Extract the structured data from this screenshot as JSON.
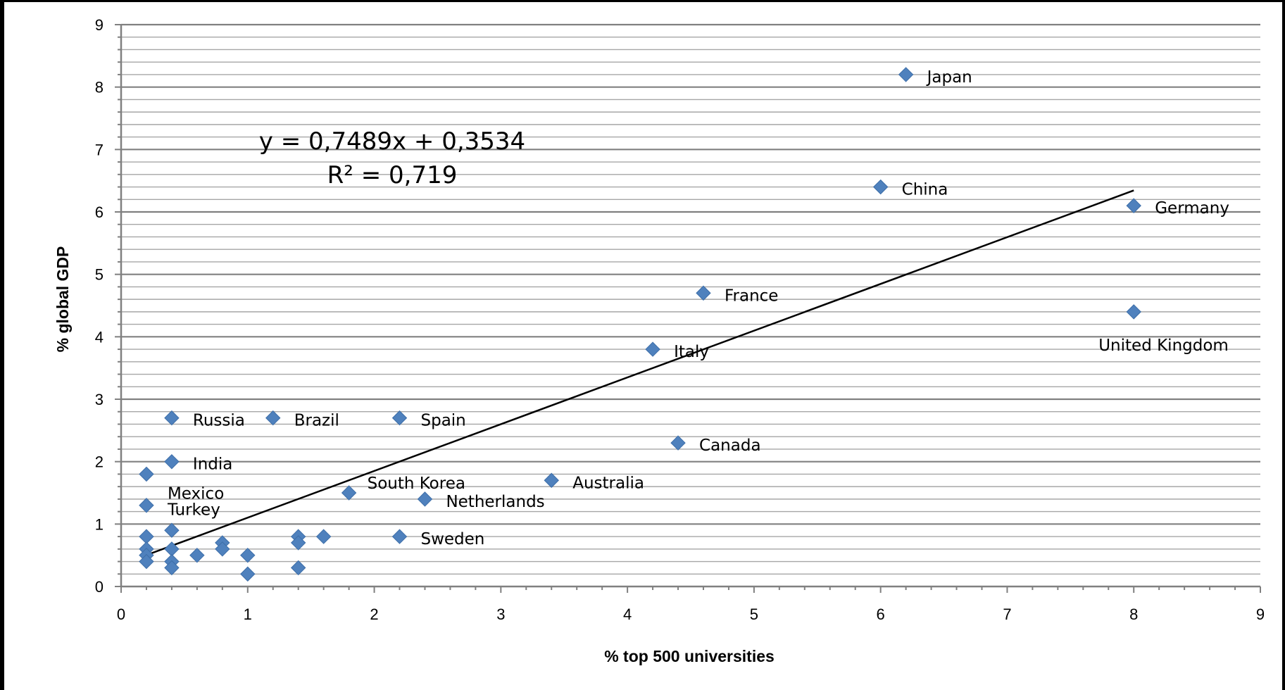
{
  "chart_data": {
    "type": "scatter",
    "title": "",
    "xlabel": "% top 500 universities",
    "ylabel": "% global GDP",
    "xlim": [
      0,
      9
    ],
    "ylim": [
      0,
      9
    ],
    "x_ticks": [
      "0",
      "1",
      "2",
      "3",
      "4",
      "5",
      "6",
      "7",
      "8",
      "9"
    ],
    "y_ticks": [
      "0",
      "1",
      "2",
      "3",
      "4",
      "5",
      "6",
      "7",
      "8",
      "9"
    ],
    "grid": "horizontal",
    "legend": "none",
    "marker": "diamond",
    "marker_color": "#4f81bd",
    "points": [
      {
        "x": 6.2,
        "y": 8.2,
        "label": "Japan"
      },
      {
        "x": 6.0,
        "y": 6.4,
        "label": "China"
      },
      {
        "x": 8.0,
        "y": 6.1,
        "label": "Germany"
      },
      {
        "x": 4.6,
        "y": 4.7,
        "label": "France"
      },
      {
        "x": 8.0,
        "y": 4.4,
        "label": "United Kingdom"
      },
      {
        "x": 4.2,
        "y": 3.8,
        "label": "Italy"
      },
      {
        "x": 0.4,
        "y": 2.7,
        "label": "Russia"
      },
      {
        "x": 1.2,
        "y": 2.7,
        "label": "Brazil"
      },
      {
        "x": 2.2,
        "y": 2.7,
        "label": "Spain"
      },
      {
        "x": 4.4,
        "y": 2.3,
        "label": "Canada"
      },
      {
        "x": 0.4,
        "y": 2.0,
        "label": "India"
      },
      {
        "x": 0.2,
        "y": 1.8,
        "label": "Mexico"
      },
      {
        "x": 1.8,
        "y": 1.5,
        "label": "South Korea"
      },
      {
        "x": 3.4,
        "y": 1.7,
        "label": "Australia"
      },
      {
        "x": 2.4,
        "y": 1.4,
        "label": "Netherlands"
      },
      {
        "x": 0.2,
        "y": 1.3,
        "label": "Turkey"
      },
      {
        "x": 2.2,
        "y": 0.8,
        "label": "Sweden"
      },
      {
        "x": 0.2,
        "y": 0.8
      },
      {
        "x": 0.2,
        "y": 0.6
      },
      {
        "x": 0.2,
        "y": 0.5
      },
      {
        "x": 0.2,
        "y": 0.4
      },
      {
        "x": 0.4,
        "y": 0.9
      },
      {
        "x": 0.4,
        "y": 0.6
      },
      {
        "x": 0.4,
        "y": 0.4
      },
      {
        "x": 0.4,
        "y": 0.3
      },
      {
        "x": 0.6,
        "y": 0.5
      },
      {
        "x": 0.8,
        "y": 0.7
      },
      {
        "x": 0.8,
        "y": 0.6
      },
      {
        "x": 1.0,
        "y": 0.5
      },
      {
        "x": 1.0,
        "y": 0.2
      },
      {
        "x": 1.4,
        "y": 0.8
      },
      {
        "x": 1.4,
        "y": 0.7
      },
      {
        "x": 1.4,
        "y": 0.3
      },
      {
        "x": 1.6,
        "y": 0.8
      }
    ],
    "trendline": {
      "slope": 0.7489,
      "intercept": 0.3534,
      "x_range": [
        0.2,
        8.0
      ],
      "equation": "y = 0,7489x + 0,3534",
      "r_squared": "R² = 0,719"
    }
  }
}
